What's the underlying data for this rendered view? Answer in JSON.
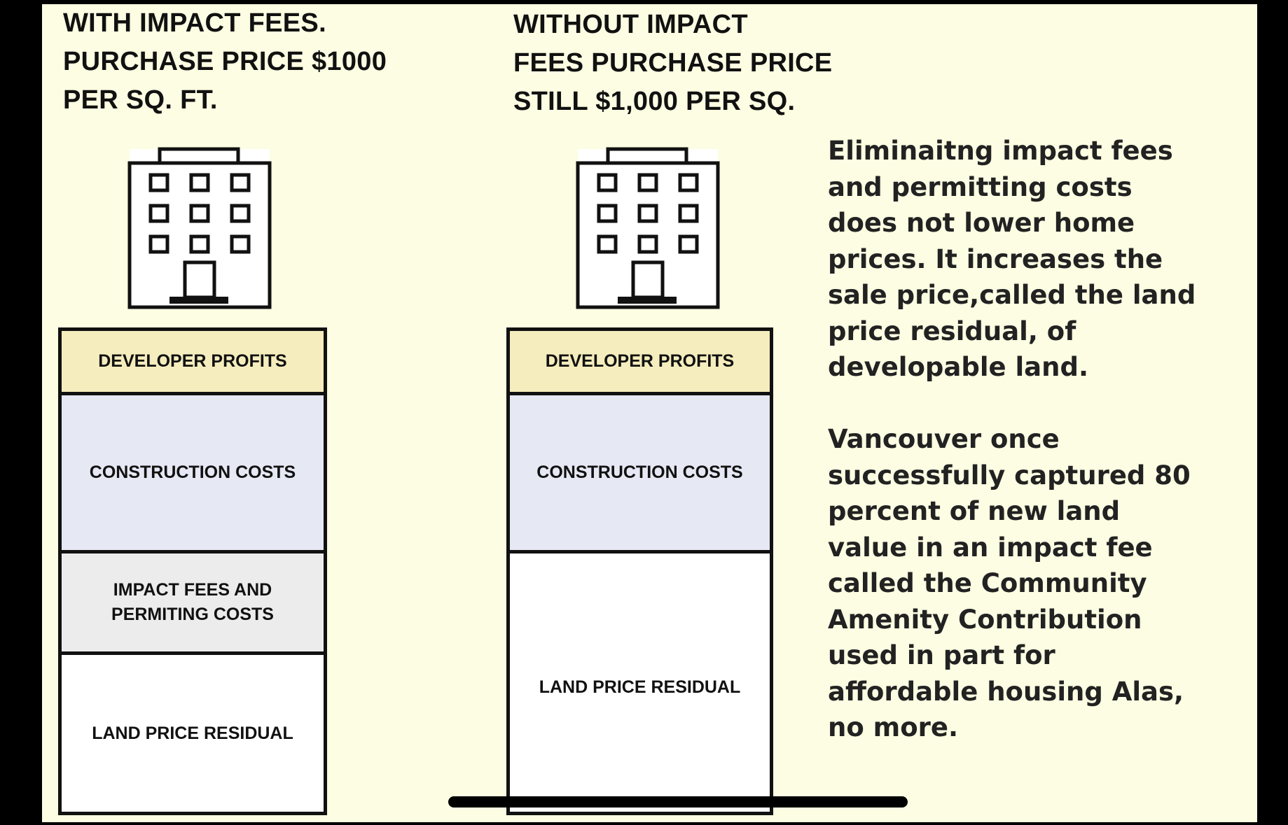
{
  "left": {
    "heading": "WITH IMPACT FEES.\nPURCHASE PRICE $1000\nPER SQ. FT.",
    "segments": {
      "developer_profits": "DEVELOPER PROFITS",
      "construction_costs": "CONSTRUCTION COSTS",
      "impact_fees": "IMPACT FEES AND\nPERMITING COSTS",
      "land_price_residual": "LAND PRICE RESIDUAL"
    }
  },
  "right": {
    "heading": "WITHOUT IMPACT\nFEES PURCHASE PRICE\nSTILL $1,000 PER SQ.",
    "segments": {
      "developer_profits": "DEVELOPER PROFITS",
      "construction_costs": "CONSTRUCTION COSTS",
      "land_price_residual": "LAND PRICE RESIDUAL"
    }
  },
  "commentary": {
    "paragraph_1": "Eliminaitng impact fees\nand permitting costs\ndoes not lower home\nprices. It increases the\nsale price,called the land\nprice residual, of\ndevelopable land.",
    "paragraph_2": "Vancouver once\nsuccessfully captured 80\npercent of new land\nvalue in an impact fee\ncalled the Community\nAmenity Contribution\nused in part for\naffordable housing  Alas,\nno more."
  },
  "colors": {
    "background": "#fdfde3",
    "developer_profits": "#f5edbd",
    "construction_costs": "#e6e8f4",
    "impact_fees": "#ececec",
    "land": "#ffffff"
  }
}
